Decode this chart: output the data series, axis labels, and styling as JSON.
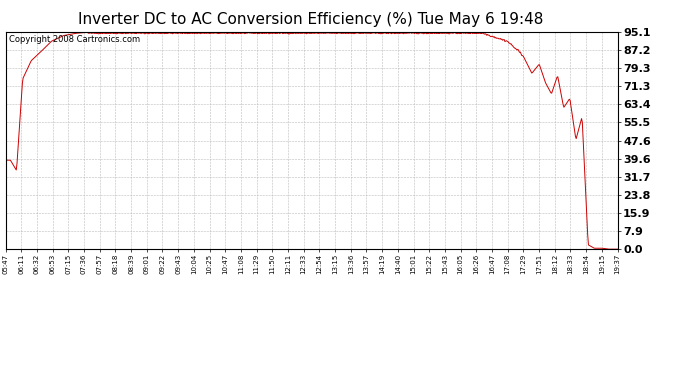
{
  "title": "Inverter DC to AC Conversion Efficiency (%) Tue May 6 19:48",
  "copyright": "Copyright 2008 Cartronics.com",
  "yticks": [
    0.0,
    7.9,
    15.9,
    23.8,
    31.7,
    39.6,
    47.6,
    55.5,
    63.4,
    71.3,
    79.3,
    87.2,
    95.1
  ],
  "xtick_labels": [
    "05:47",
    "06:11",
    "06:32",
    "06:53",
    "07:15",
    "07:36",
    "07:57",
    "08:18",
    "08:39",
    "09:01",
    "09:22",
    "09:43",
    "10:04",
    "10:25",
    "10:47",
    "11:08",
    "11:29",
    "11:50",
    "12:11",
    "12:33",
    "12:54",
    "13:15",
    "13:36",
    "13:57",
    "14:19",
    "14:40",
    "15:01",
    "15:22",
    "15:43",
    "16:05",
    "16:26",
    "16:47",
    "17:08",
    "17:29",
    "17:51",
    "18:12",
    "18:33",
    "18:54",
    "19:15",
    "19:37"
  ],
  "line_color": "#cc0000",
  "background_color": "#ffffff",
  "plot_bg_color": "#ffffff",
  "grid_color": "#bbbbbb",
  "title_fontsize": 11,
  "copyright_fontsize": 6,
  "ytick_fontsize": 8,
  "xtick_fontsize": 5,
  "ymin": 0.0,
  "ymax": 95.1
}
